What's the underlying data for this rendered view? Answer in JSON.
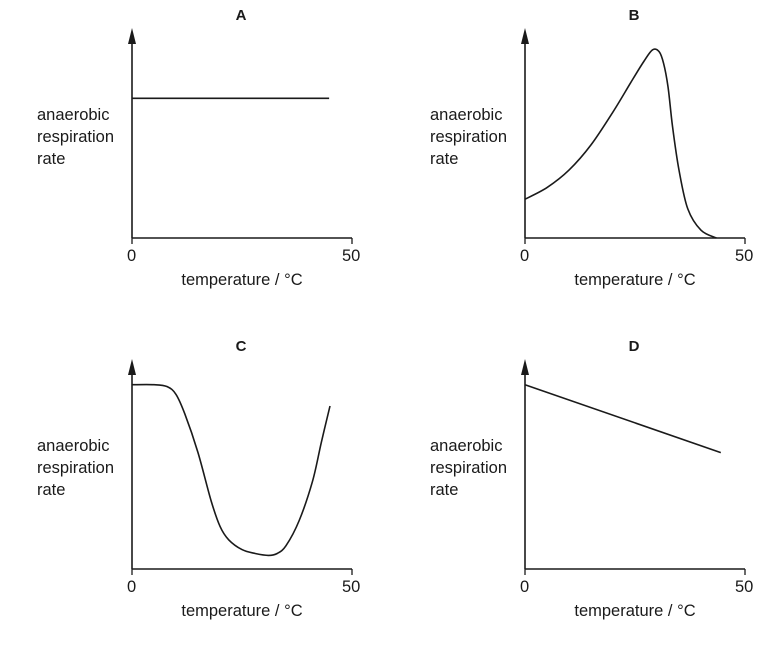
{
  "chart_data": [
    {
      "type": "line",
      "panel_label": "A",
      "ylabel_lines": [
        "anaerobic",
        "respiration",
        "rate"
      ],
      "xlabel": "temperature / °C",
      "xlim": [
        0,
        50
      ],
      "xticks": [
        "0",
        "50"
      ],
      "ylim": [
        0,
        1
      ],
      "y_ticks_shown": false,
      "series": [
        {
          "x": [
            0,
            44.8
          ],
          "y": [
            0.72,
            0.72
          ]
        }
      ]
    },
    {
      "type": "line",
      "panel_label": "B",
      "ylabel_lines": [
        "anaerobic",
        "respiration",
        "rate"
      ],
      "xlabel": "temperature / °C",
      "xlim": [
        0,
        50
      ],
      "xticks": [
        "0",
        "50"
      ],
      "ylim": [
        0,
        1
      ],
      "y_ticks_shown": false,
      "series": [
        {
          "x": [
            0,
            5,
            10,
            15,
            20,
            24,
            27,
            29,
            30.5,
            31.5,
            32.5,
            33.5,
            35,
            37,
            40,
            43.5
          ],
          "y": [
            0.2,
            0.26,
            0.35,
            0.48,
            0.65,
            0.8,
            0.91,
            0.97,
            0.96,
            0.9,
            0.78,
            0.58,
            0.35,
            0.15,
            0.04,
            0.0
          ]
        }
      ]
    },
    {
      "type": "line",
      "panel_label": "C",
      "ylabel_lines": [
        "anaerobic",
        "respiration",
        "rate"
      ],
      "xlabel": "temperature / °C",
      "xlim": [
        0,
        50
      ],
      "xticks": [
        "0",
        "50"
      ],
      "ylim": [
        0,
        1
      ],
      "y_ticks_shown": false,
      "series": [
        {
          "x": [
            0,
            5,
            8,
            10,
            12,
            15,
            18,
            20,
            22,
            25,
            28,
            31,
            33,
            35,
            38,
            41,
            43,
            45
          ],
          "y": [
            0.95,
            0.95,
            0.94,
            0.9,
            0.8,
            0.6,
            0.35,
            0.22,
            0.15,
            0.1,
            0.08,
            0.07,
            0.08,
            0.12,
            0.25,
            0.45,
            0.65,
            0.84
          ]
        }
      ]
    },
    {
      "type": "line",
      "panel_label": "D",
      "ylabel_lines": [
        "anaerobic",
        "respiration",
        "rate"
      ],
      "xlabel": "temperature / °C",
      "xlim": [
        0,
        50
      ],
      "xticks": [
        "0",
        "50"
      ],
      "ylim": [
        0,
        1
      ],
      "y_ticks_shown": false,
      "series": [
        {
          "x": [
            0,
            44.5
          ],
          "y": [
            0.95,
            0.6
          ]
        }
      ]
    }
  ],
  "colors": {
    "ink": "#1a1a1a",
    "background": "#ffffff"
  }
}
